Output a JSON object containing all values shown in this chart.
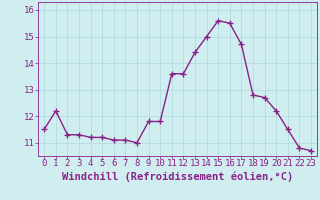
{
  "x": [
    0,
    1,
    2,
    3,
    4,
    5,
    6,
    7,
    8,
    9,
    10,
    11,
    12,
    13,
    14,
    15,
    16,
    17,
    18,
    19,
    20,
    21,
    22,
    23
  ],
  "y": [
    11.5,
    12.2,
    11.3,
    11.3,
    11.2,
    11.2,
    11.1,
    11.1,
    11.0,
    11.8,
    11.8,
    13.6,
    13.6,
    14.4,
    15.0,
    15.6,
    15.5,
    14.7,
    12.8,
    12.7,
    12.2,
    11.5,
    10.8,
    10.7
  ],
  "line_color": "#882288",
  "marker": "+",
  "marker_size": 4,
  "marker_lw": 1.0,
  "bg_color": "#d0eef0",
  "grid_color": "#b0d8dc",
  "xlabel": "Windchill (Refroidissement éolien,°C)",
  "ylim": [
    10.5,
    16.3
  ],
  "xlim": [
    -0.5,
    23.5
  ],
  "yticks": [
    11,
    12,
    13,
    14,
    15,
    16
  ],
  "xticks": [
    0,
    1,
    2,
    3,
    4,
    5,
    6,
    7,
    8,
    9,
    10,
    11,
    12,
    13,
    14,
    15,
    16,
    17,
    18,
    19,
    20,
    21,
    22,
    23
  ],
  "tick_color": "#882288",
  "label_color": "#882288",
  "tick_fontsize": 6.5,
  "xlabel_fontsize": 7.5,
  "linewidth": 1.0
}
